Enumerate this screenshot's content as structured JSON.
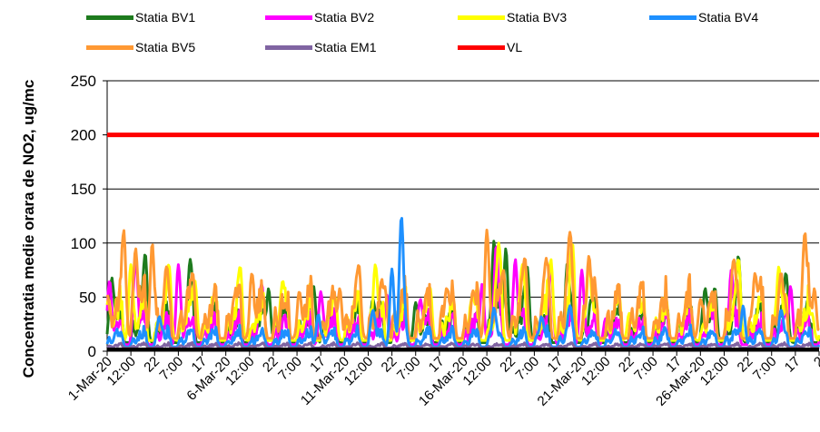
{
  "chart_data": {
    "type": "line",
    "ylabel": "Concentratia medie orara de NO2, ug/mc",
    "ylim": [
      0,
      250
    ],
    "yticks": [
      0,
      50,
      100,
      150,
      200,
      250
    ],
    "grid": "horizontal",
    "legend_position": "top",
    "x_range": [
      "1-Mar-20",
      "31-Mar-20"
    ],
    "x_major_ticks": [
      "1-Mar-20",
      "6-Mar-20",
      "11-Mar-20",
      "16-Mar-20",
      "21-Mar-20",
      "26-Mar-20"
    ],
    "x_minor_ticks": [
      "2",
      "7",
      "12",
      "17",
      "22"
    ],
    "series": [
      {
        "name": "Statia BV1",
        "color": "#1e7b1e",
        "peaks": [
          [
            0.2,
            68
          ],
          [
            1.6,
            90
          ],
          [
            3.5,
            85
          ],
          [
            6.8,
            58
          ],
          [
            8.7,
            60
          ],
          [
            11.2,
            48
          ],
          [
            13.0,
            45
          ],
          [
            16.3,
            102
          ],
          [
            16.8,
            95
          ],
          [
            17.7,
            78
          ],
          [
            19.4,
            82
          ],
          [
            20.4,
            48
          ],
          [
            25.2,
            58
          ],
          [
            25.6,
            58
          ],
          [
            26.6,
            88
          ],
          [
            28.6,
            72
          ]
        ],
        "base": 8,
        "amp": 25
      },
      {
        "name": "Statia BV2",
        "color": "#ff00ff",
        "peaks": [
          [
            0.1,
            65
          ],
          [
            1.2,
            88
          ],
          [
            3.0,
            80
          ],
          [
            6.5,
            62
          ],
          [
            9.0,
            55
          ],
          [
            11.8,
            52
          ],
          [
            13.2,
            48
          ],
          [
            15.8,
            62
          ],
          [
            16.4,
            98
          ],
          [
            17.2,
            85
          ],
          [
            18.7,
            80
          ],
          [
            20.0,
            75
          ],
          [
            21.0,
            30
          ],
          [
            25.4,
            40
          ],
          [
            26.3,
            75
          ],
          [
            28.8,
            60
          ]
        ],
        "base": 6,
        "amp": 20
      },
      {
        "name": "Statia BV3",
        "color": "#ffff00",
        "peaks": [
          [
            0.05,
            48
          ],
          [
            1.0,
            80
          ],
          [
            2.6,
            80
          ],
          [
            3.7,
            65
          ],
          [
            5.6,
            78
          ],
          [
            7.4,
            65
          ],
          [
            9.6,
            50
          ],
          [
            11.3,
            80
          ],
          [
            13.6,
            58
          ],
          [
            15.4,
            52
          ],
          [
            16.5,
            100
          ],
          [
            17.5,
            80
          ],
          [
            18.7,
            85
          ],
          [
            19.6,
            100
          ],
          [
            20.3,
            82
          ],
          [
            22.0,
            35
          ],
          [
            24.6,
            25
          ],
          [
            26.6,
            85
          ],
          [
            28.3,
            78
          ],
          [
            29.7,
            35
          ]
        ],
        "base": 10,
        "amp": 30
      },
      {
        "name": "Statia BV4",
        "color": "#1e90ff",
        "peaks": [
          [
            2.2,
            32
          ],
          [
            8.9,
            34
          ],
          [
            11.2,
            38
          ],
          [
            12.0,
            76
          ],
          [
            12.4,
            125
          ],
          [
            16.3,
            40
          ],
          [
            18.3,
            32
          ],
          [
            19.5,
            42
          ],
          [
            26.8,
            42
          ],
          [
            28.4,
            38
          ]
        ],
        "base": 4,
        "amp": 12
      },
      {
        "name": "Statia BV5",
        "color": "#ff9933",
        "peaks": [
          [
            0.0,
            52
          ],
          [
            0.7,
            112
          ],
          [
            1.2,
            95
          ],
          [
            1.9,
            100
          ],
          [
            2.5,
            78
          ],
          [
            3.6,
            72
          ],
          [
            5.4,
            52
          ],
          [
            6.1,
            72
          ],
          [
            8.1,
            55
          ],
          [
            9.8,
            58
          ],
          [
            10.6,
            80
          ],
          [
            11.7,
            60
          ],
          [
            14.3,
            58
          ],
          [
            16.0,
            112
          ],
          [
            16.7,
            75
          ],
          [
            17.6,
            86
          ],
          [
            18.5,
            86
          ],
          [
            19.5,
            110
          ],
          [
            20.3,
            88
          ],
          [
            25.0,
            48
          ],
          [
            25.4,
            30
          ],
          [
            26.4,
            85
          ],
          [
            27.3,
            72
          ],
          [
            28.4,
            72
          ],
          [
            29.4,
            110
          ],
          [
            29.8,
            58
          ]
        ],
        "base": 12,
        "amp": 35
      },
      {
        "name": "Statia EM1",
        "color": "#8064a2",
        "peaks": [],
        "base": 3,
        "amp": 3
      },
      {
        "name": "VL",
        "color": "#ff0000",
        "values": [
          200,
          200
        ]
      }
    ]
  }
}
